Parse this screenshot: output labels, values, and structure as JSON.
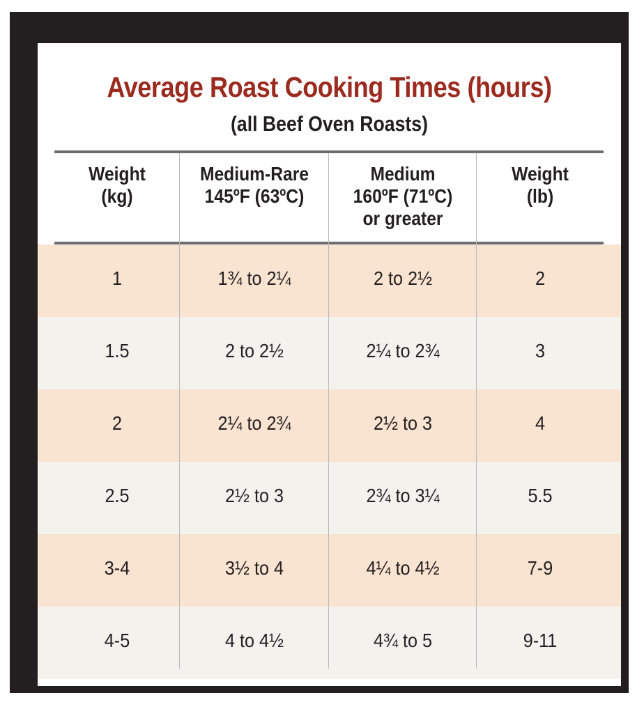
{
  "title": "Average Roast Cooking Times (hours)",
  "subtitle": "(all Beef Oven Roasts)",
  "colors": {
    "title": "#9b2a1f",
    "frame": "#231f20",
    "row_odd": "#f9e3d1",
    "row_even": "#f4f2ed",
    "rule": "#6d6e71"
  },
  "headers": [
    {
      "lines": [
        "Weight",
        "(kg)"
      ]
    },
    {
      "lines": [
        "Medium-Rare",
        "145ºF (63ºC)"
      ]
    },
    {
      "lines": [
        "Medium",
        "160ºF (71ºC)",
        "or greater"
      ]
    },
    {
      "lines": [
        "Weight",
        "(lb)"
      ]
    }
  ],
  "rows": [
    {
      "kg": "1",
      "medium_rare": "1¾ to 2¼",
      "medium": "2 to 2½",
      "lb": "2"
    },
    {
      "kg": "1.5",
      "medium_rare": "2 to 2½",
      "medium": "2¼ to 2¾",
      "lb": "3"
    },
    {
      "kg": "2",
      "medium_rare": "2¼ to 2¾",
      "medium": "2½ to 3",
      "lb": "4"
    },
    {
      "kg": "2.5",
      "medium_rare": "2½ to 3",
      "medium": "2¾ to 3¼",
      "lb": "5.5"
    },
    {
      "kg": "3-4",
      "medium_rare": "3½ to 4",
      "medium": "4¼ to 4½",
      "lb": "7-9"
    },
    {
      "kg": "4-5",
      "medium_rare": "4 to 4½",
      "medium": "4¾ to 5",
      "lb": "9-11"
    }
  ]
}
